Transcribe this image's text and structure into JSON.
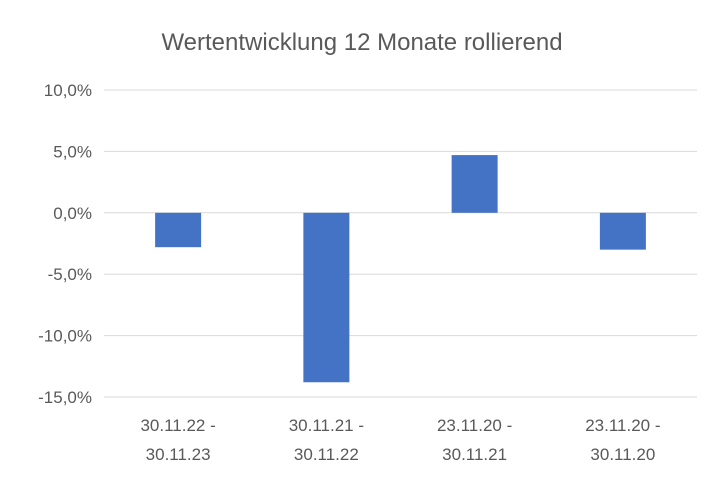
{
  "chart_data": {
    "type": "bar",
    "title": "Wertentwicklung 12 Monate rollierend",
    "xlabel": "",
    "ylabel": "",
    "categories": [
      [
        "30.11.22 -",
        "30.11.23"
      ],
      [
        "30.11.21 -",
        "30.11.22"
      ],
      [
        "23.11.20 -",
        "30.11.21"
      ],
      [
        "23.11.20 -",
        "30.11.20"
      ]
    ],
    "series": [
      {
        "values": [
          -2.8,
          -13.8,
          4.7,
          -3.0
        ],
        "color": "#4472c4"
      }
    ],
    "ylim": [
      -15,
      10
    ],
    "yticks": [
      10,
      5,
      0,
      -5,
      -10,
      -15
    ],
    "ytick_labels": [
      "10,0%",
      "5,0%",
      "0,0%",
      "-5,0%",
      "-10,0%",
      "-15,0%"
    ],
    "grid": true,
    "legend": "none"
  }
}
